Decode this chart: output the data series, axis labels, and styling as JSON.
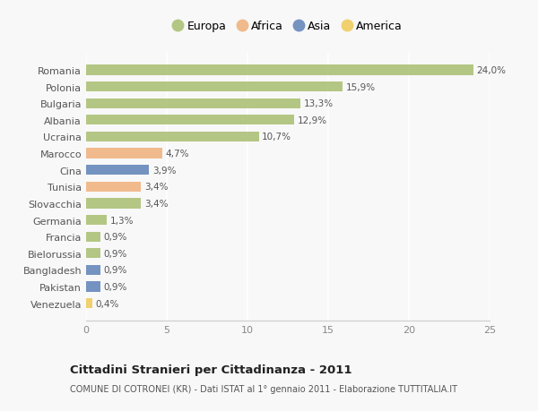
{
  "countries": [
    "Romania",
    "Polonia",
    "Bulgaria",
    "Albania",
    "Ucraina",
    "Marocco",
    "Cina",
    "Tunisia",
    "Slovacchia",
    "Germania",
    "Francia",
    "Bielorussia",
    "Bangladesh",
    "Pakistan",
    "Venezuela"
  ],
  "values": [
    24.0,
    15.9,
    13.3,
    12.9,
    10.7,
    4.7,
    3.9,
    3.4,
    3.4,
    1.3,
    0.9,
    0.9,
    0.9,
    0.9,
    0.4
  ],
  "labels": [
    "24,0%",
    "15,9%",
    "13,3%",
    "12,9%",
    "10,7%",
    "4,7%",
    "3,9%",
    "3,4%",
    "3,4%",
    "1,3%",
    "0,9%",
    "0,9%",
    "0,9%",
    "0,9%",
    "0,4%"
  ],
  "continents": [
    "Europa",
    "Europa",
    "Europa",
    "Europa",
    "Europa",
    "Africa",
    "Asia",
    "Africa",
    "Europa",
    "Europa",
    "Europa",
    "Europa",
    "Asia",
    "Asia",
    "America"
  ],
  "colors": {
    "Europa": "#adc178",
    "Africa": "#f0b482",
    "Asia": "#6688bb",
    "America": "#f0cc60"
  },
  "xlim": [
    0,
    25
  ],
  "xticks": [
    0,
    5,
    10,
    15,
    20,
    25
  ],
  "title": "Cittadini Stranieri per Cittadinanza - 2011",
  "subtitle": "COMUNE DI COTRONEI (KR) - Dati ISTAT al 1° gennaio 2011 - Elaborazione TUTTITALIA.IT",
  "bg_color": "#f8f8f8",
  "plot_bg_color": "#f8f8f8",
  "grid_color": "#ffffff",
  "bar_height": 0.6,
  "legend_entries": [
    "Europa",
    "Africa",
    "Asia",
    "America"
  ]
}
